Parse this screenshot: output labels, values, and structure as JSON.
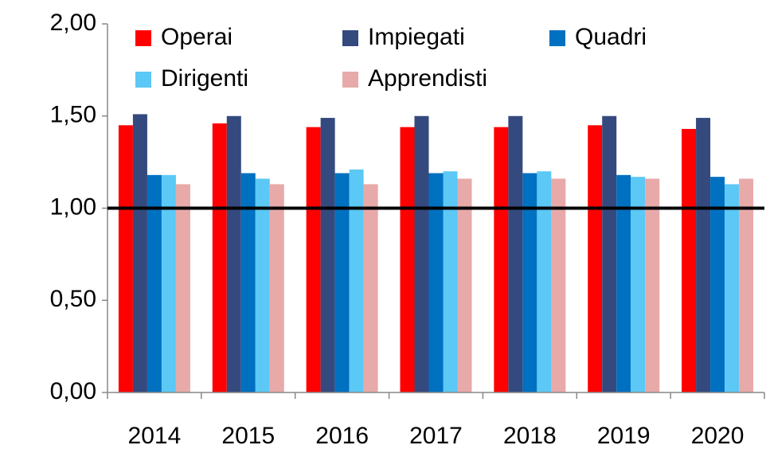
{
  "chart_data": {
    "type": "bar",
    "categories": [
      "2014",
      "2015",
      "2016",
      "2017",
      "2018",
      "2019",
      "2020"
    ],
    "series": [
      {
        "name": "Operai",
        "color": "#ff0000",
        "values": [
          1.45,
          1.46,
          1.44,
          1.44,
          1.44,
          1.45,
          1.43
        ]
      },
      {
        "name": "Impiegati",
        "color": "#344a7e",
        "values": [
          1.51,
          1.5,
          1.49,
          1.5,
          1.5,
          1.5,
          1.49
        ]
      },
      {
        "name": "Quadri",
        "color": "#0070c0",
        "values": [
          1.18,
          1.19,
          1.19,
          1.19,
          1.19,
          1.18,
          1.17
        ]
      },
      {
        "name": "Dirigenti",
        "color": "#5bc8f5",
        "values": [
          1.18,
          1.16,
          1.21,
          1.2,
          1.2,
          1.17,
          1.13
        ]
      },
      {
        "name": "Apprendisti",
        "color": "#e8a9a9",
        "values": [
          1.13,
          1.13,
          1.13,
          1.16,
          1.16,
          1.16,
          1.16
        ]
      }
    ],
    "ylim": [
      0,
      2
    ],
    "yticks": [
      {
        "value": 0,
        "label": "0,00"
      },
      {
        "value": 0.5,
        "label": "0,50"
      },
      {
        "value": 1,
        "label": "1,00"
      },
      {
        "value": 1.5,
        "label": "1,50"
      },
      {
        "value": 2,
        "label": "2,00"
      }
    ],
    "reference_line": 1,
    "legend": "top"
  }
}
